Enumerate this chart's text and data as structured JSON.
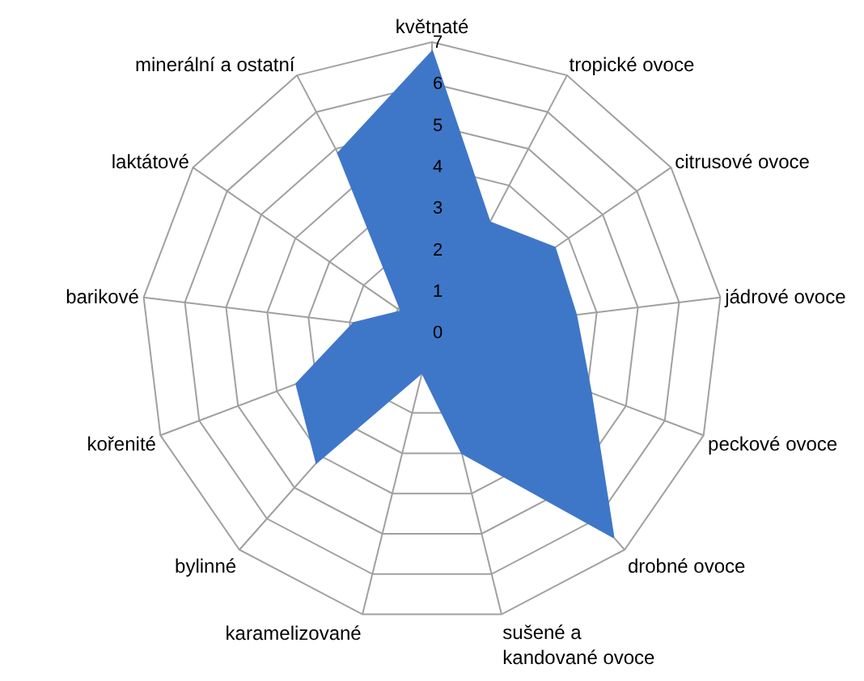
{
  "chart_data": {
    "type": "radar",
    "categories": [
      "květnaté",
      "tropické ovoce",
      "citrusové ovoce",
      "jádrové ovoce",
      "peckové ovoce",
      "drobné ovoce",
      "sušené a kandované ovoce",
      "karamelizované",
      "bylinné",
      "kořenité",
      "barikové",
      "laktátové",
      "minerální a ostatní"
    ],
    "series": [
      {
        "color": "#3f77c8",
        "values": [
          6.8,
          3.0,
          3.6,
          3.5,
          4.1,
          6.6,
          3.0,
          1.0,
          4.2,
          3.5,
          1.9,
          0.9,
          4.9
        ]
      }
    ],
    "ylim": [
      0,
      7
    ],
    "yticks": [
      0,
      1,
      2,
      3,
      4,
      5,
      6,
      7
    ],
    "grid": true
  }
}
